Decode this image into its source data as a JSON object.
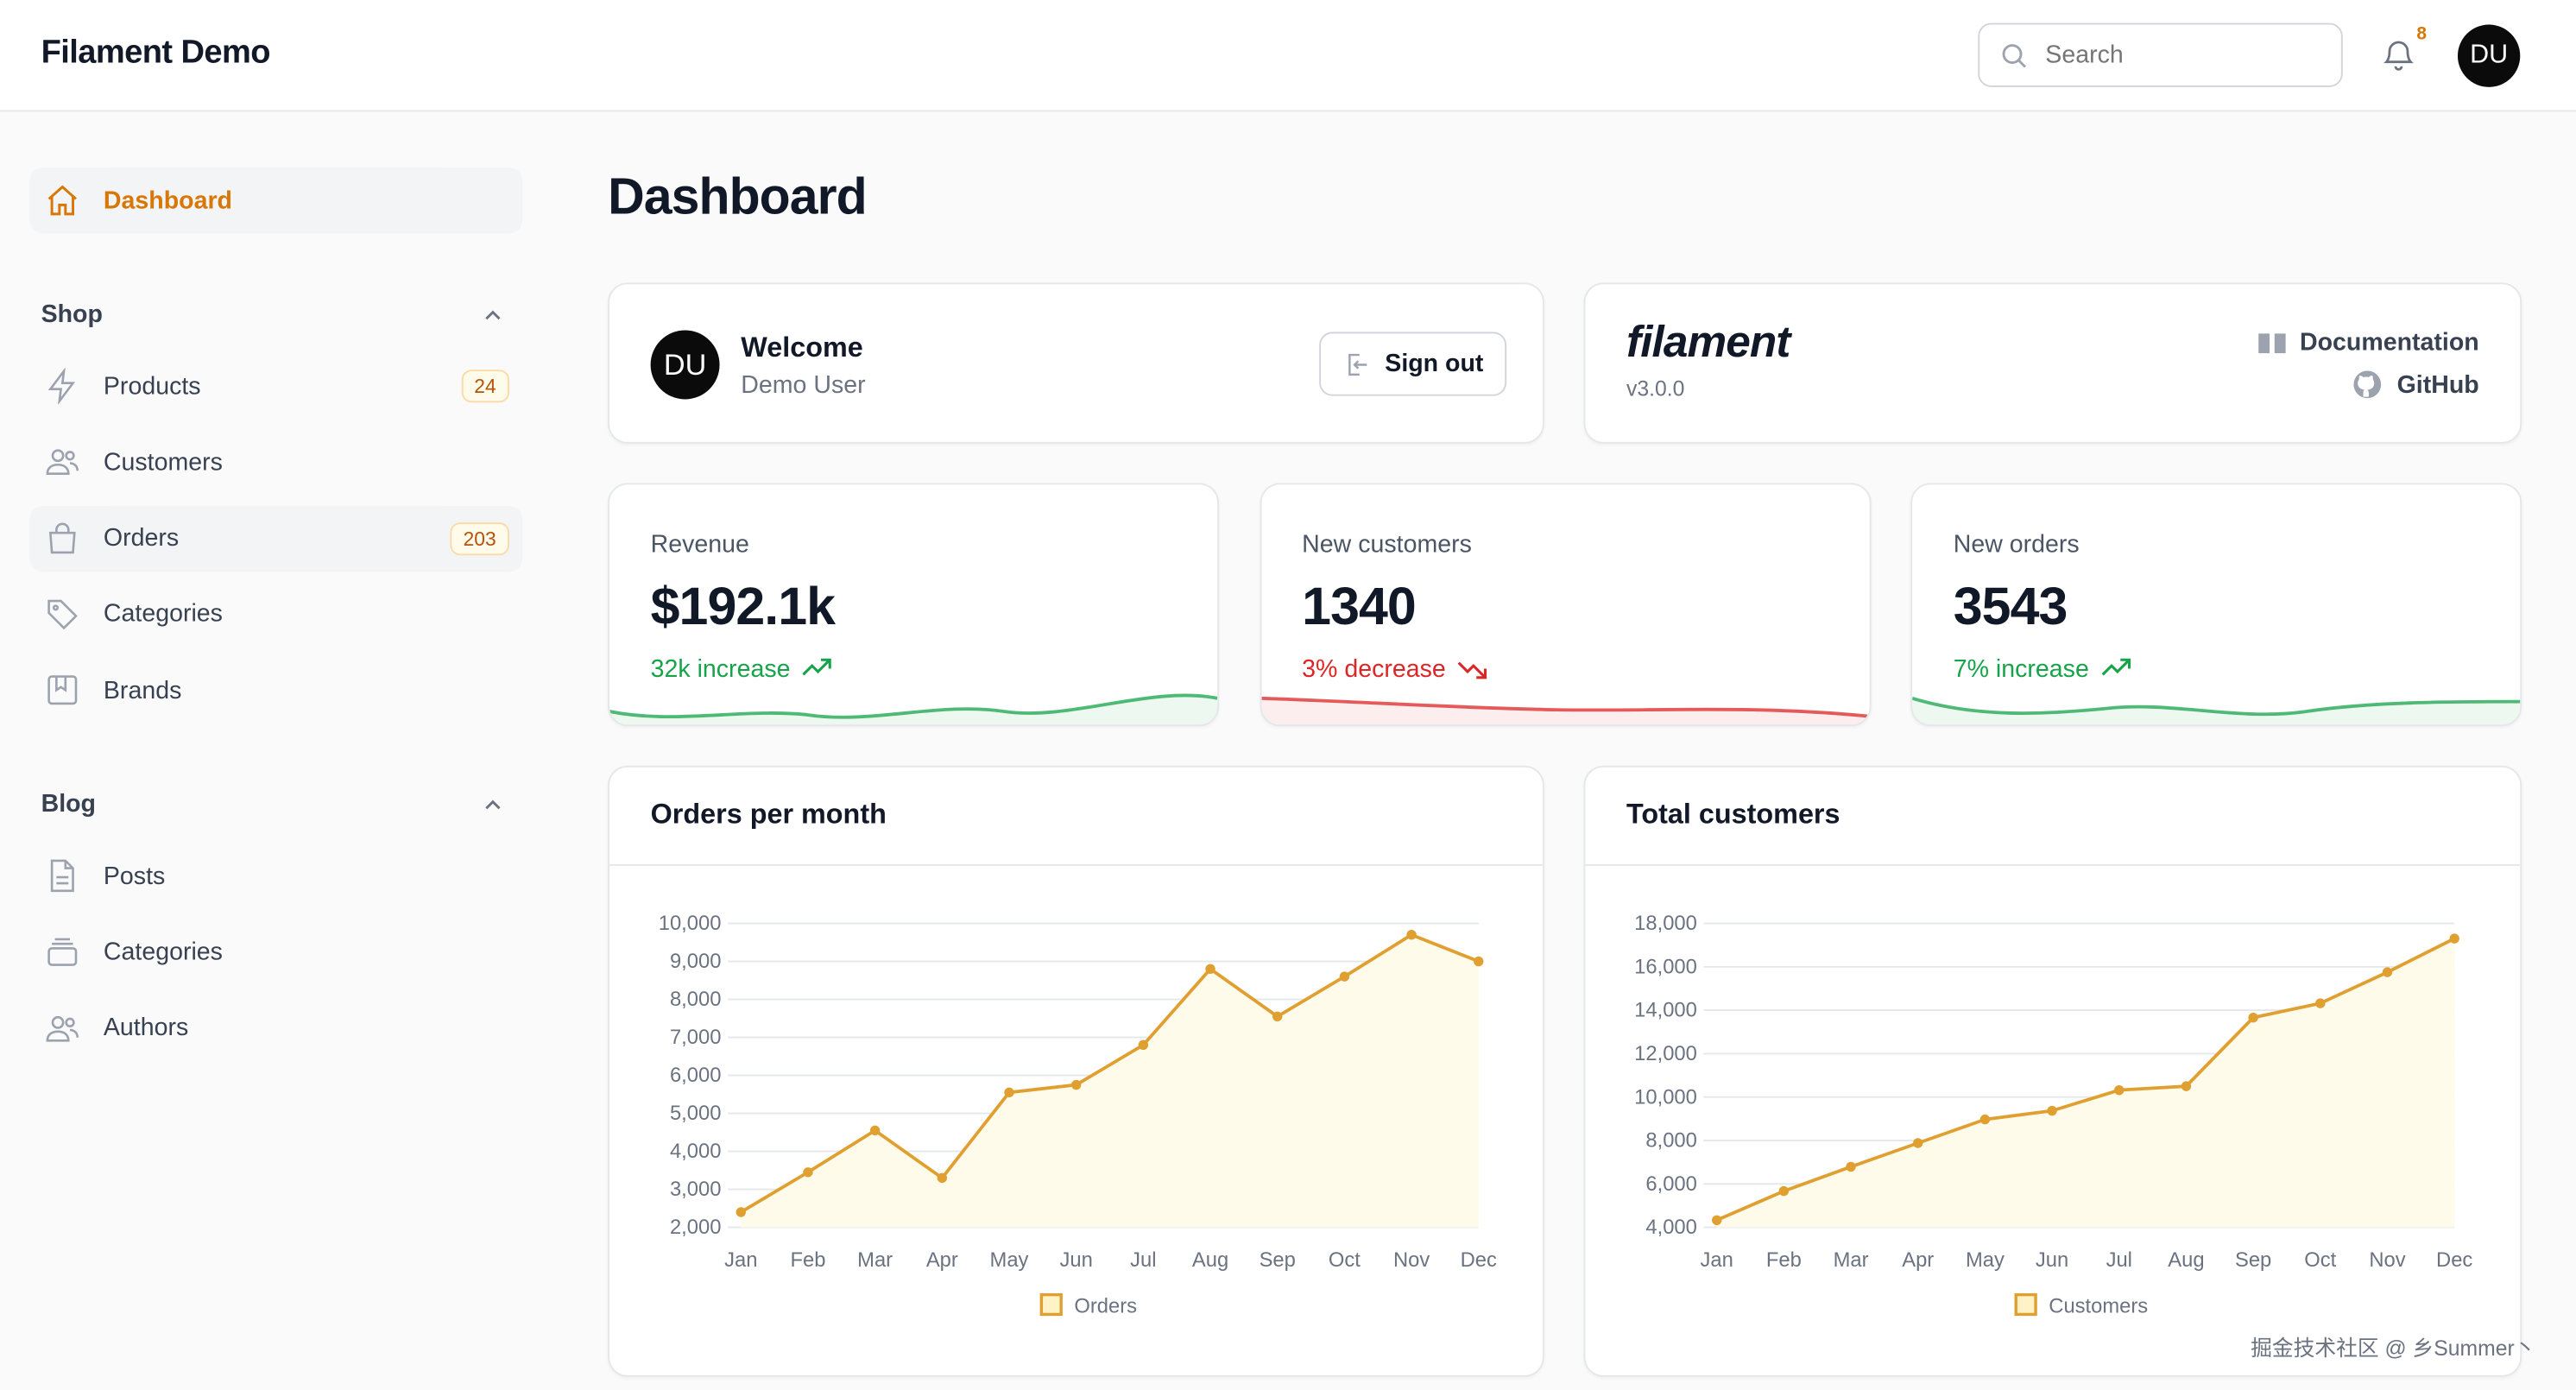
{
  "header": {
    "brand": "Filament Demo",
    "search_placeholder": "Search",
    "notification_count": "8",
    "avatar_initials": "DU"
  },
  "sidebar": {
    "dashboard": "Dashboard",
    "groups": [
      {
        "label": "Shop",
        "items": [
          {
            "label": "Products",
            "icon": "bolt-icon",
            "count": "24"
          },
          {
            "label": "Customers",
            "icon": "users-icon"
          },
          {
            "label": "Orders",
            "icon": "shopping-bag-icon",
            "count": "203"
          },
          {
            "label": "Categories",
            "icon": "tag-icon"
          },
          {
            "label": "Brands",
            "icon": "bookmark-square-icon"
          }
        ]
      },
      {
        "label": "Blog",
        "items": [
          {
            "label": "Posts",
            "icon": "document-text-icon"
          },
          {
            "label": "Categories",
            "icon": "rectangle-stack-icon"
          },
          {
            "label": "Authors",
            "icon": "users-icon"
          }
        ]
      }
    ]
  },
  "page": {
    "title": "Dashboard"
  },
  "welcome": {
    "avatar": "DU",
    "title": "Welcome",
    "name": "Demo User",
    "sign_out": "Sign out"
  },
  "filament": {
    "logo": "filament",
    "version": "v3.0.0",
    "docs": "Documentation",
    "github": "GitHub"
  },
  "stats": [
    {
      "label": "Revenue",
      "value": "$192.1k",
      "trend": "32k increase",
      "direction": "up",
      "color": "#16a34a"
    },
    {
      "label": "New customers",
      "value": "1340",
      "trend": "3% decrease",
      "direction": "down",
      "color": "#dc2626"
    },
    {
      "label": "New orders",
      "value": "3543",
      "trend": "7% increase",
      "direction": "up",
      "color": "#16a34a"
    }
  ],
  "colors": {
    "accent": "#d97706",
    "chart_line": "#e0a031",
    "chart_fill": "#fefbea"
  },
  "chart_data": [
    {
      "type": "line",
      "title": "Orders per month",
      "categories": [
        "Jan",
        "Feb",
        "Mar",
        "Apr",
        "May",
        "Jun",
        "Jul",
        "Aug",
        "Sep",
        "Oct",
        "Nov",
        "Dec"
      ],
      "series": [
        {
          "name": "Orders",
          "values": [
            2400,
            3450,
            4550,
            3300,
            5550,
            5750,
            6800,
            8800,
            7550,
            8600,
            9700,
            9000
          ]
        }
      ],
      "ylim": [
        2000,
        10000
      ],
      "yticks": [
        "10,000",
        "9,000",
        "8,000",
        "7,000",
        "6,000",
        "5,000",
        "4,000",
        "3,000",
        "2,000"
      ],
      "grid": true,
      "fill": true,
      "legend": "bottom"
    },
    {
      "type": "line",
      "title": "Total customers",
      "categories": [
        "Jan",
        "Feb",
        "Mar",
        "Apr",
        "May",
        "Jun",
        "Jul",
        "Aug",
        "Sep",
        "Oct",
        "Nov",
        "Dec"
      ],
      "series": [
        {
          "name": "Customers",
          "values": [
            4330,
            5670,
            6790,
            7880,
            8970,
            9370,
            10320,
            10500,
            13660,
            14320,
            15750,
            17300
          ]
        }
      ],
      "ylim": [
        4000,
        18000
      ],
      "yticks": [
        "18,000",
        "16,000",
        "14,000",
        "12,000",
        "10,000",
        "8,000",
        "6,000",
        "4,000"
      ],
      "grid": true,
      "fill": true,
      "legend": "bottom"
    }
  ],
  "watermark": "掘金技术社区 @ 乡Summer丶"
}
